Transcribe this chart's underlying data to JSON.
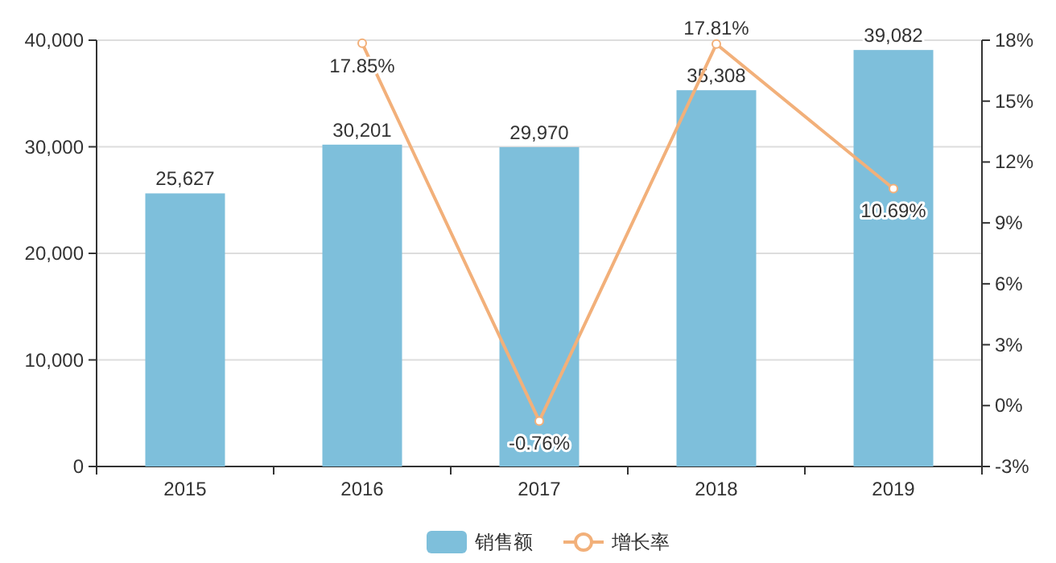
{
  "chart_data": {
    "type": "bar",
    "categories": [
      "2015",
      "2016",
      "2017",
      "2018",
      "2019"
    ],
    "series": [
      {
        "name": "销售额",
        "color": "#7ebfdb",
        "values": [
          25627,
          30201,
          29970,
          35308,
          39082
        ],
        "value_labels": [
          "25,627",
          "30,201",
          "29,970",
          "35,308",
          "39,082"
        ]
      },
      {
        "name": "增长率",
        "type": "line",
        "axis": "y2",
        "color": "#f2b07a",
        "marker": "circle",
        "values": [
          null,
          17.85,
          -0.76,
          17.81,
          10.69
        ],
        "value_labels": [
          null,
          "17.85%",
          "-0.76%",
          "17.81%",
          "10.69%"
        ]
      }
    ],
    "ylim": [
      0,
      40000
    ],
    "yticks": [
      0,
      {
        "value": 10000,
        "label": "10,000"
      },
      {
        "value": 20000,
        "label": "20,000"
      },
      {
        "value": 30000,
        "label": "30,000"
      },
      {
        "value": 40000,
        "label": "40,000"
      }
    ],
    "y2lim": [
      -3,
      18
    ],
    "y2ticks": [
      {
        "value": -3,
        "label": "-3%"
      },
      {
        "value": 0,
        "label": "0%"
      },
      {
        "value": 3,
        "label": "3%"
      },
      {
        "value": 6,
        "label": "6%"
      },
      {
        "value": 9,
        "label": "9%"
      },
      {
        "value": 12,
        "label": "12%"
      },
      {
        "value": 15,
        "label": "15%"
      },
      {
        "value": 18,
        "label": "18%"
      }
    ],
    "grid": "y",
    "legend": "bottom"
  }
}
